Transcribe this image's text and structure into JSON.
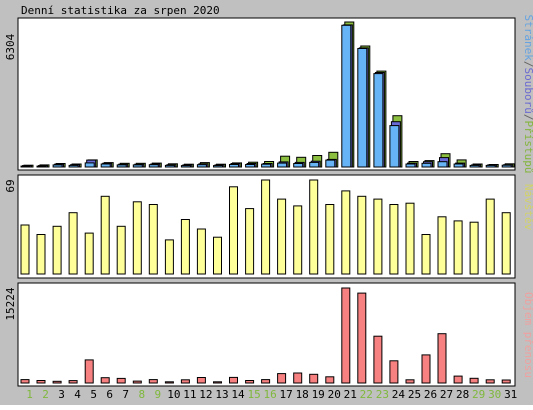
{
  "chart_data": [
    {
      "type": "bar",
      "title": "Denní statistika za srpen 2020",
      "ymax_label": "6304",
      "right_label_parts": [
        {
          "text": "Stránek",
          "color": "#66a3e0"
        },
        {
          "text": "/",
          "color": "#666666"
        },
        {
          "text": "Souborů",
          "color": "#6b6bd1"
        },
        {
          "text": "/",
          "color": "#666666"
        },
        {
          "text": "Přístupů",
          "color": "#84b53d"
        }
      ],
      "categories": [
        "1",
        "2",
        "3",
        "4",
        "5",
        "6",
        "7",
        "8",
        "9",
        "10",
        "11",
        "12",
        "13",
        "14",
        "15",
        "16",
        "17",
        "18",
        "19",
        "20",
        "21",
        "22",
        "23",
        "24",
        "25",
        "26",
        "27",
        "28",
        "29",
        "30",
        "31"
      ],
      "ylim": [
        0,
        6304
      ],
      "series": [
        {
          "name": "Přístupů",
          "color": "#8cbf3f",
          "values": [
            80,
            90,
            150,
            130,
            310,
            190,
            160,
            160,
            170,
            140,
            120,
            190,
            120,
            180,
            210,
            240,
            470,
            420,
            500,
            640,
            6304,
            5260,
            4170,
            2230,
            240,
            280,
            580,
            310,
            130,
            110,
            140
          ]
        },
        {
          "name": "Souborů",
          "color": "#6a6ad6",
          "values": [
            60,
            60,
            120,
            100,
            300,
            160,
            120,
            120,
            130,
            100,
            90,
            140,
            90,
            150,
            150,
            150,
            220,
            200,
            250,
            330,
            6180,
            5180,
            4110,
            1970,
            170,
            230,
            410,
            170,
            90,
            90,
            100
          ]
        },
        {
          "name": "Stránek",
          "color": "#66b3f5",
          "values": [
            40,
            40,
            90,
            70,
            180,
            130,
            90,
            90,
            100,
            70,
            60,
            100,
            60,
            110,
            110,
            120,
            170,
            150,
            200,
            300,
            6160,
            5150,
            4060,
            1800,
            130,
            160,
            230,
            130,
            70,
            70,
            80
          ]
        }
      ]
    },
    {
      "type": "bar",
      "ymax_label": "69",
      "right_label": "Návštěv",
      "right_label_color": "#d2d26a",
      "ylim": [
        0,
        69
      ],
      "series": [
        {
          "name": "Návštěv",
          "color": "#ffff99",
          "values": [
            36,
            29,
            35,
            45,
            30,
            57,
            35,
            53,
            51,
            25,
            40,
            33,
            27,
            64,
            48,
            69,
            55,
            50,
            69,
            51,
            61,
            57,
            55,
            51,
            52,
            29,
            42,
            39,
            38,
            55,
            45
          ]
        }
      ]
    },
    {
      "type": "bar",
      "ymax_label": "15224",
      "right_label": "Objem přenosu",
      "right_label_color": "#f0a0a0",
      "ylim": [
        0,
        15224
      ],
      "series": [
        {
          "name": "Objem přenosu",
          "color": "#f78080",
          "values": [
            550,
            400,
            280,
            380,
            3700,
            850,
            740,
            300,
            550,
            190,
            520,
            880,
            190,
            900,
            400,
            550,
            1500,
            1600,
            1400,
            1000,
            15224,
            14400,
            7500,
            3550,
            520,
            4500,
            7900,
            1100,
            750,
            520,
            480
          ]
        }
      ]
    }
  ],
  "xaxis": {
    "labels": [
      "1",
      "2",
      "3",
      "4",
      "5",
      "6",
      "7",
      "8",
      "9",
      "10",
      "11",
      "12",
      "13",
      "14",
      "15",
      "16",
      "17",
      "18",
      "19",
      "20",
      "21",
      "22",
      "23",
      "24",
      "25",
      "26",
      "27",
      "28",
      "29",
      "30",
      "31"
    ],
    "weekend_days": [
      "1",
      "2",
      "8",
      "9",
      "15",
      "16",
      "22",
      "23",
      "29",
      "30"
    ],
    "weekday_color": "#000000",
    "weekend_color": "#7fb83c"
  },
  "colors": {
    "background": "#c0c0c0",
    "panel": "#ffffff"
  }
}
